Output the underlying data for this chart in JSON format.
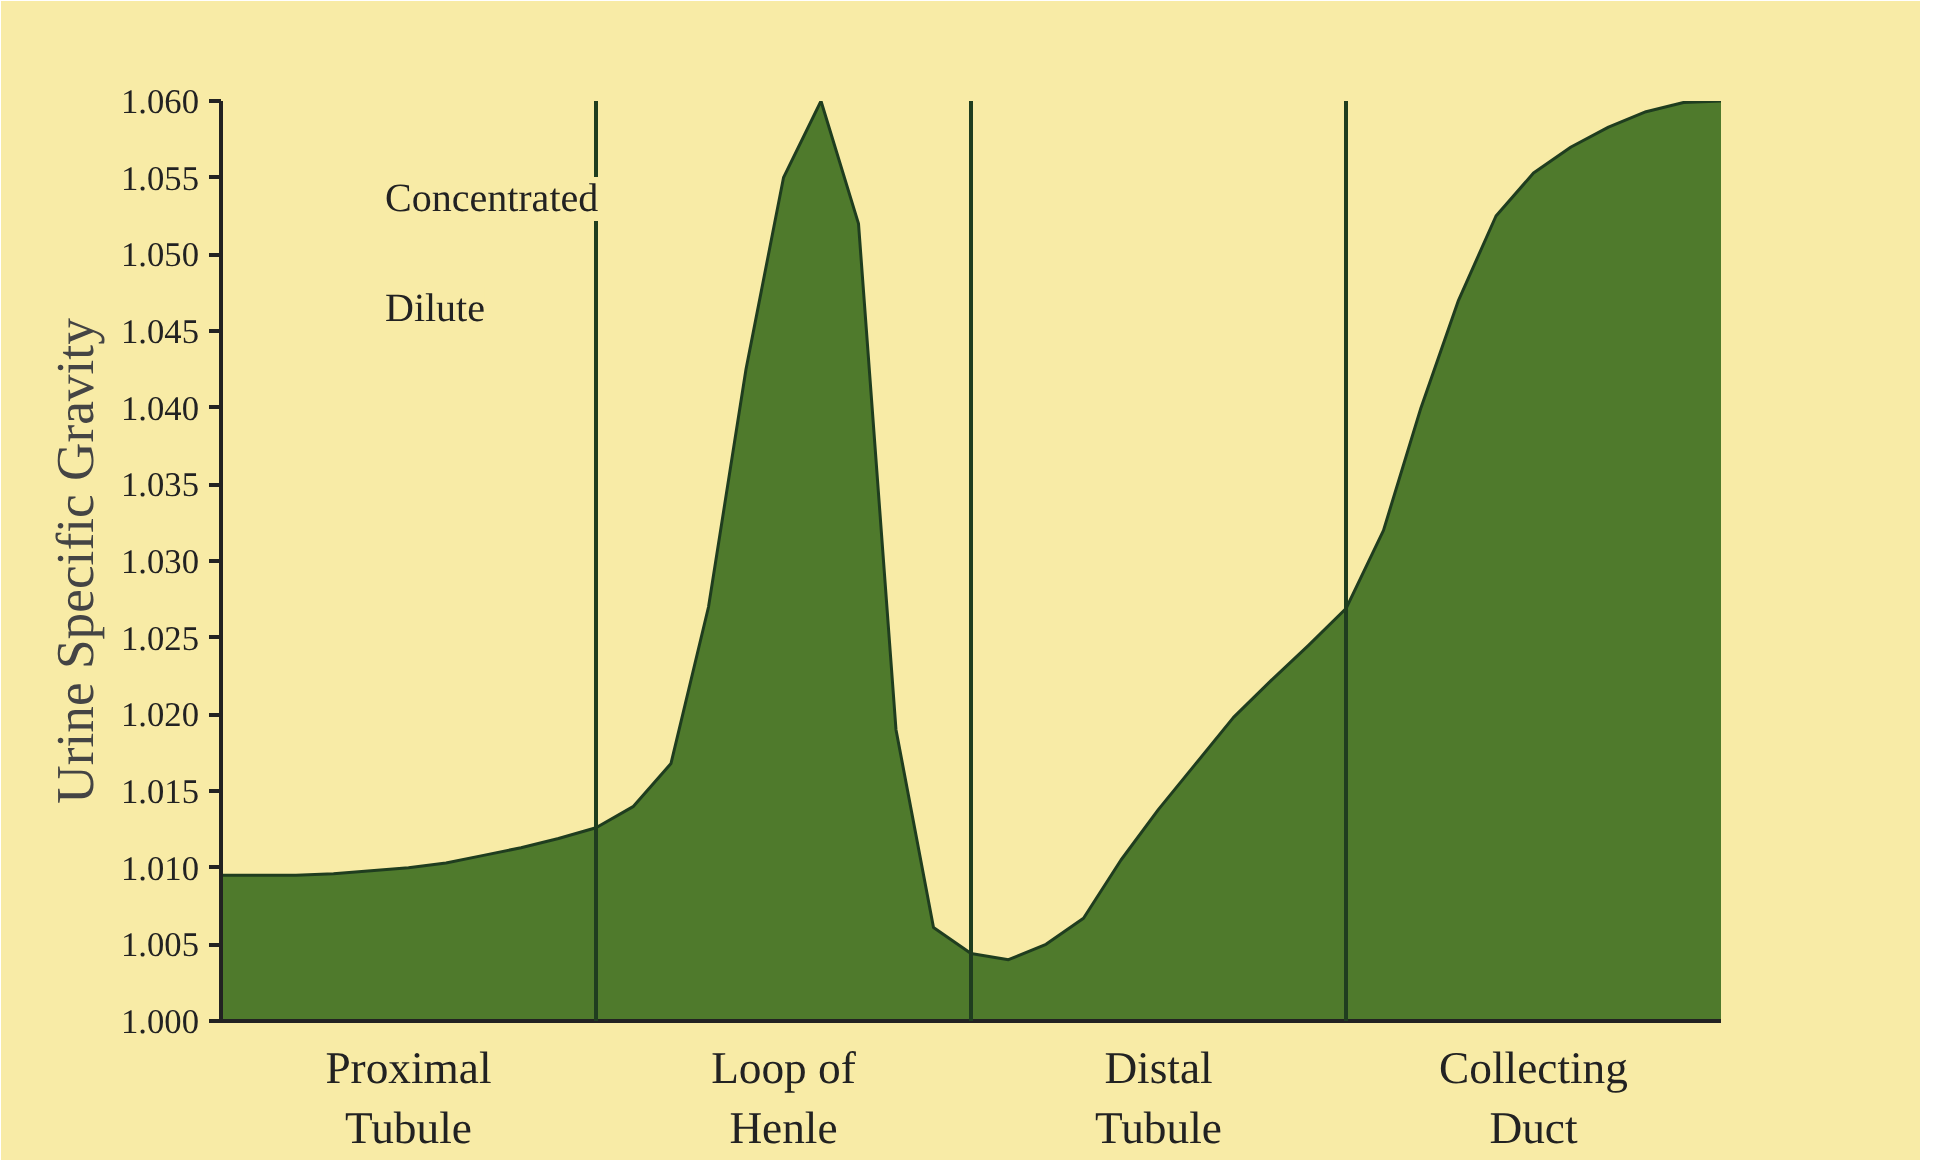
{
  "chart_data": {
    "type": "area",
    "ylabel": "Urine Specific Gravity",
    "categories": [
      null,
      null,
      null,
      null,
      null,
      "Proximal\nTubule",
      null,
      null,
      null,
      null,
      null,
      null,
      null,
      null,
      null,
      "Loop of\nHenle",
      null,
      null,
      null,
      null,
      null,
      null,
      null,
      null,
      null,
      "Distal\nTubule",
      null,
      null,
      null,
      null,
      null,
      null,
      null,
      null,
      null,
      "Collecting\nDuct",
      null,
      null,
      null,
      null,
      null
    ],
    "series": [
      {
        "color": "#4f7a2c",
        "values": [
          1.0095,
          1.0095,
          1.0095,
          1.0096,
          1.0098,
          1.01,
          1.0103,
          1.0108,
          1.0113,
          1.0119,
          1.0126,
          1.014,
          1.0168,
          1.027,
          1.0425,
          1.055,
          1.06,
          1.052,
          1.019,
          1.0061,
          1.0044,
          1.004,
          1.005,
          1.0067,
          1.0105,
          1.0138,
          1.0168,
          1.0198,
          1.0222,
          1.0245,
          1.0269,
          1.032,
          1.04,
          1.047,
          1.0525,
          1.0553,
          1.057,
          1.0583,
          1.0593,
          1.0599,
          1.06
        ]
      }
    ],
    "ylim": [
      1.0,
      1.06
    ],
    "yticks": [
      {
        "value": 1.0,
        "label": "1.000"
      },
      {
        "value": 1.005,
        "label": "1.005"
      },
      {
        "value": 1.01,
        "label": "1.010"
      },
      {
        "value": 1.015,
        "label": "1.015"
      },
      {
        "value": 1.02,
        "label": "1.020"
      },
      {
        "value": 1.025,
        "label": "1.025"
      },
      {
        "value": 1.03,
        "label": "1.030"
      },
      {
        "value": 1.035,
        "label": "1.035"
      },
      {
        "value": 1.04,
        "label": "1.040"
      },
      {
        "value": 1.045,
        "label": "1.045"
      },
      {
        "value": 1.05,
        "label": "1.050"
      },
      {
        "value": 1.055,
        "label": "1.055"
      },
      {
        "value": 1.06,
        "label": "1.060"
      }
    ],
    "annotations": [
      "Concentrated",
      "Dilute"
    ],
    "grid": "x"
  }
}
